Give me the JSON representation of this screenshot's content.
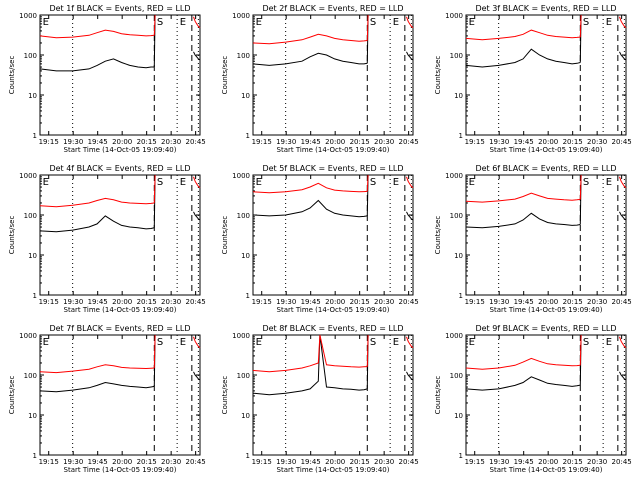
{
  "figure": {
    "ylabel": "Counts/sec",
    "xlabel": "Start Time (14-Oct-05 19:09:40)",
    "x_tick_labels": [
      "19:15",
      "19:30",
      "19:45",
      "20:00",
      "20:15",
      "20:30",
      "20:45"
    ],
    "y_tick_labels": [
      "1",
      "10",
      "100",
      "1000"
    ],
    "markers": [
      "E",
      "S",
      "E"
    ],
    "colors": {
      "events": "#000000",
      "lld": "#ff0000",
      "axes": "#000000",
      "background": "#ffffff"
    }
  },
  "chart_data": [
    {
      "type": "line",
      "title": "Det 1f BLACK = Events, RED = LLD",
      "x_unit": "minutes after 19:09:40",
      "x_range": [
        0,
        98
      ],
      "ylim": [
        1,
        1000
      ],
      "y_scale": "log",
      "xlabel": "Start Time (14-Oct-05 19:09:40)",
      "ylabel": "Counts/sec",
      "series": [
        {
          "name": "Events",
          "color": "#000000",
          "x": [
            0,
            10,
            20,
            30,
            35,
            40,
            45,
            50,
            55,
            60,
            65,
            68,
            70
          ],
          "y": [
            45,
            40,
            40,
            45,
            55,
            70,
            80,
            65,
            55,
            50,
            48,
            50,
            50
          ]
        },
        {
          "name": "LLD",
          "color": "#ff0000",
          "x": [
            0,
            10,
            20,
            30,
            35,
            40,
            45,
            50,
            55,
            60,
            65,
            68,
            70
          ],
          "y": [
            300,
            270,
            280,
            310,
            360,
            420,
            390,
            340,
            320,
            310,
            300,
            305,
            310
          ]
        }
      ]
    },
    {
      "type": "line",
      "title": "Det 2f BLACK = Events, RED = LLD",
      "x_unit": "minutes after 19:09:40",
      "x_range": [
        0,
        98
      ],
      "ylim": [
        1,
        1000
      ],
      "y_scale": "log",
      "xlabel": "Start Time (14-Oct-05 19:09:40)",
      "ylabel": "Counts/sec",
      "series": [
        {
          "name": "Events",
          "color": "#000000",
          "x": [
            0,
            10,
            20,
            30,
            35,
            40,
            45,
            50,
            55,
            60,
            65,
            68,
            70
          ],
          "y": [
            60,
            55,
            60,
            70,
            90,
            110,
            100,
            80,
            70,
            65,
            60,
            60,
            62
          ]
        },
        {
          "name": "LLD",
          "color": "#ff0000",
          "x": [
            0,
            10,
            20,
            30,
            35,
            40,
            45,
            50,
            55,
            60,
            65,
            68,
            70
          ],
          "y": [
            200,
            190,
            210,
            240,
            280,
            330,
            300,
            260,
            240,
            230,
            220,
            225,
            230
          ]
        }
      ]
    },
    {
      "type": "line",
      "title": "Det 3f BLACK = Events, RED = LLD",
      "x_unit": "minutes after 19:09:40",
      "x_range": [
        0,
        98
      ],
      "ylim": [
        1,
        1000
      ],
      "y_scale": "log",
      "xlabel": "Start Time (14-Oct-05 19:09:40)",
      "ylabel": "Counts/sec",
      "series": [
        {
          "name": "Events",
          "color": "#000000",
          "x": [
            0,
            10,
            20,
            30,
            35,
            40,
            45,
            50,
            55,
            60,
            65,
            68,
            70
          ],
          "y": [
            55,
            50,
            55,
            65,
            80,
            140,
            100,
            80,
            70,
            65,
            60,
            62,
            65
          ]
        },
        {
          "name": "LLD",
          "color": "#ff0000",
          "x": [
            0,
            10,
            20,
            30,
            35,
            40,
            45,
            50,
            55,
            60,
            65,
            68,
            70
          ],
          "y": [
            260,
            240,
            260,
            290,
            330,
            420,
            360,
            310,
            290,
            280,
            270,
            275,
            280
          ]
        }
      ]
    },
    {
      "type": "line",
      "title": "Det 4f BLACK = Events, RED = LLD",
      "x_unit": "minutes after 19:09:40",
      "x_range": [
        0,
        98
      ],
      "ylim": [
        1,
        1000
      ],
      "y_scale": "log",
      "xlabel": "Start Time (14-Oct-05 19:09:40)",
      "ylabel": "Counts/sec",
      "series": [
        {
          "name": "Events",
          "color": "#000000",
          "x": [
            0,
            10,
            20,
            30,
            35,
            40,
            45,
            50,
            55,
            60,
            65,
            68,
            70
          ],
          "y": [
            40,
            38,
            42,
            50,
            60,
            95,
            70,
            55,
            50,
            48,
            45,
            46,
            48
          ]
        },
        {
          "name": "LLD",
          "color": "#ff0000",
          "x": [
            0,
            10,
            20,
            30,
            35,
            40,
            45,
            50,
            55,
            60,
            65,
            68,
            70
          ],
          "y": [
            170,
            160,
            175,
            200,
            230,
            260,
            240,
            210,
            200,
            195,
            190,
            195,
            200
          ]
        }
      ]
    },
    {
      "type": "line",
      "title": "Det 5f BLACK = Events, RED = LLD",
      "x_unit": "minutes after 19:09:40",
      "x_range": [
        0,
        98
      ],
      "ylim": [
        1,
        1000
      ],
      "y_scale": "log",
      "xlabel": "Start Time (14-Oct-05 19:09:40)",
      "ylabel": "Counts/sec",
      "series": [
        {
          "name": "Events",
          "color": "#000000",
          "x": [
            0,
            10,
            20,
            30,
            35,
            40,
            45,
            50,
            55,
            60,
            65,
            68,
            70
          ],
          "y": [
            100,
            95,
            100,
            120,
            150,
            230,
            140,
            110,
            100,
            95,
            90,
            92,
            95
          ]
        },
        {
          "name": "LLD",
          "color": "#ff0000",
          "x": [
            0,
            10,
            20,
            30,
            35,
            40,
            45,
            50,
            55,
            60,
            65,
            68,
            70
          ],
          "y": [
            380,
            360,
            380,
            430,
            500,
            620,
            480,
            420,
            400,
            390,
            380,
            385,
            390
          ]
        }
      ]
    },
    {
      "type": "line",
      "title": "Det 6f BLACK = Events, RED = LLD",
      "x_unit": "minutes after 19:09:40",
      "x_range": [
        0,
        98
      ],
      "ylim": [
        1,
        1000
      ],
      "y_scale": "log",
      "xlabel": "Start Time (14-Oct-05 19:09:40)",
      "ylabel": "Counts/sec",
      "series": [
        {
          "name": "Events",
          "color": "#000000",
          "x": [
            0,
            10,
            20,
            30,
            35,
            40,
            45,
            50,
            55,
            60,
            65,
            68,
            70
          ],
          "y": [
            50,
            48,
            52,
            60,
            75,
            110,
            80,
            65,
            60,
            58,
            55,
            56,
            58
          ]
        },
        {
          "name": "LLD",
          "color": "#ff0000",
          "x": [
            0,
            10,
            20,
            30,
            35,
            40,
            45,
            50,
            55,
            60,
            65,
            68,
            70
          ],
          "y": [
            220,
            210,
            225,
            250,
            290,
            350,
            300,
            260,
            250,
            240,
            235,
            240,
            245
          ]
        }
      ]
    },
    {
      "type": "line",
      "title": "Det 7f BLACK = Events, RED = LLD",
      "x_unit": "minutes after 19:09:40",
      "x_range": [
        0,
        98
      ],
      "ylim": [
        1,
        1000
      ],
      "y_scale": "log",
      "xlabel": "Start Time (14-Oct-05 19:09:40)",
      "ylabel": "Counts/sec",
      "series": [
        {
          "name": "Events",
          "color": "#000000",
          "x": [
            0,
            10,
            20,
            30,
            35,
            40,
            45,
            50,
            55,
            60,
            65,
            68,
            70
          ],
          "y": [
            40,
            38,
            42,
            48,
            55,
            65,
            60,
            55,
            52,
            50,
            48,
            50,
            52
          ]
        },
        {
          "name": "LLD",
          "color": "#ff0000",
          "x": [
            0,
            10,
            20,
            30,
            35,
            40,
            45,
            50,
            55,
            60,
            65,
            68,
            70
          ],
          "y": [
            120,
            115,
            125,
            140,
            160,
            180,
            170,
            155,
            150,
            148,
            145,
            148,
            150
          ]
        }
      ]
    },
    {
      "type": "line",
      "title": "Det 8f BLACK = Events, RED = LLD",
      "x_unit": "minutes after 19:09:40",
      "x_range": [
        0,
        98
      ],
      "ylim": [
        1,
        1000
      ],
      "y_scale": "log",
      "xlabel": "Start Time (14-Oct-05 19:09:40)",
      "ylabel": "Counts/sec",
      "series": [
        {
          "name": "Events",
          "color": "#000000",
          "x": [
            0,
            10,
            20,
            30,
            35,
            40,
            41,
            45,
            50,
            55,
            60,
            65,
            68,
            70
          ],
          "y": [
            35,
            32,
            35,
            40,
            45,
            70,
            1000,
            50,
            48,
            45,
            44,
            42,
            43,
            45
          ]
        },
        {
          "name": "LLD",
          "color": "#ff0000",
          "x": [
            0,
            10,
            20,
            30,
            35,
            40,
            41,
            45,
            50,
            55,
            60,
            65,
            68,
            70
          ],
          "y": [
            130,
            120,
            130,
            150,
            170,
            200,
            1000,
            180,
            170,
            165,
            160,
            158,
            160,
            162
          ]
        }
      ]
    },
    {
      "type": "line",
      "title": "Det 9f BLACK = Events, RED = LLD",
      "x_unit": "minutes after 19:09:40",
      "x_range": [
        0,
        98
      ],
      "ylim": [
        1,
        1000
      ],
      "y_scale": "log",
      "xlabel": "Start Time (14-Oct-05 19:09:40)",
      "ylabel": "Counts/sec",
      "series": [
        {
          "name": "Events",
          "color": "#000000",
          "x": [
            0,
            10,
            20,
            30,
            35,
            40,
            45,
            50,
            55,
            60,
            65,
            68,
            70
          ],
          "y": [
            45,
            42,
            45,
            55,
            65,
            90,
            75,
            62,
            58,
            55,
            52,
            54,
            56
          ]
        },
        {
          "name": "LLD",
          "color": "#ff0000",
          "x": [
            0,
            10,
            20,
            30,
            35,
            40,
            45,
            50,
            55,
            60,
            65,
            68,
            70
          ],
          "y": [
            150,
            140,
            150,
            175,
            210,
            260,
            220,
            190,
            180,
            175,
            170,
            172,
            175
          ]
        }
      ]
    }
  ]
}
